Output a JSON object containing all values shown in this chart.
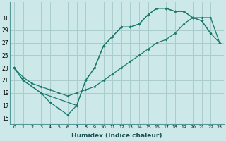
{
  "line_upper_x": [
    0,
    1,
    3,
    7,
    8,
    9,
    10,
    11,
    12,
    13,
    14,
    15,
    16,
    17,
    18,
    19,
    20,
    21,
    22
  ],
  "line_upper_y": [
    23,
    21,
    19,
    17,
    21,
    23,
    26.5,
    28,
    29.5,
    29.5,
    30,
    31.5,
    32.5,
    32.5,
    32,
    32,
    31,
    30.5,
    28.5
  ],
  "line_diag_x": [
    0,
    1,
    2,
    3,
    4,
    5,
    6,
    7,
    8,
    9,
    10,
    11,
    12,
    13,
    14,
    15,
    16,
    17,
    18,
    19,
    20,
    21,
    22,
    23
  ],
  "line_diag_y": [
    23,
    21.5,
    20.5,
    20,
    19.5,
    19,
    18.5,
    19,
    19.5,
    20,
    21,
    22,
    23,
    24,
    25,
    26,
    27,
    27.5,
    28.5,
    30,
    31,
    31,
    31,
    27
  ],
  "line_lower_x": [
    0,
    1,
    3,
    4,
    5,
    6,
    7,
    8,
    9,
    10,
    11,
    12,
    13,
    14,
    15,
    16,
    17,
    18,
    19,
    20,
    21,
    22,
    23
  ],
  "line_lower_y": [
    23,
    21,
    19,
    17.5,
    16.5,
    15.5,
    17,
    21,
    23,
    26.5,
    28,
    29.5,
    29.5,
    30,
    31.5,
    32.5,
    32.5,
    32,
    32,
    31,
    30.5,
    28.5,
    27
  ],
  "color": "#1a7a6e",
  "bg_color": "#cce8e8",
  "grid_color": "#aacccc",
  "xlabel": "Humidex (Indice chaleur)",
  "yticks": [
    15,
    17,
    19,
    21,
    23,
    25,
    27,
    29,
    31
  ],
  "xticks": [
    0,
    1,
    2,
    3,
    4,
    5,
    6,
    7,
    8,
    9,
    10,
    11,
    12,
    13,
    14,
    15,
    16,
    17,
    18,
    19,
    20,
    21,
    22,
    23
  ],
  "xlim": [
    -0.5,
    23.5
  ],
  "ylim": [
    14.0,
    33.5
  ]
}
